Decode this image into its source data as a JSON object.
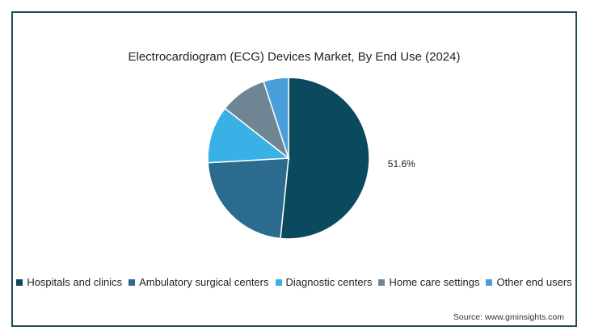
{
  "chart_data": {
    "type": "pie",
    "title": "Electrocardiogram (ECG) Devices Market, By End Use (2024)",
    "slices": [
      {
        "name": "Hospitals and clinics",
        "value": 51.6,
        "label": "51.6%",
        "color": "#0b4a5e"
      },
      {
        "name": "Ambulatory surgical centers",
        "value": 22.5,
        "label": "",
        "color": "#2a6b8e"
      },
      {
        "name": "Diagnostic centers",
        "value": 11.5,
        "label": "",
        "color": "#39b1e6"
      },
      {
        "name": "Home care settings",
        "value": 9.4,
        "label": "",
        "color": "#6f8594"
      },
      {
        "name": "Other end users",
        "value": 5.0,
        "label": "",
        "color": "#4a9fd8"
      }
    ],
    "legend_position": "bottom",
    "source": "Source: www.gminsights.com"
  }
}
